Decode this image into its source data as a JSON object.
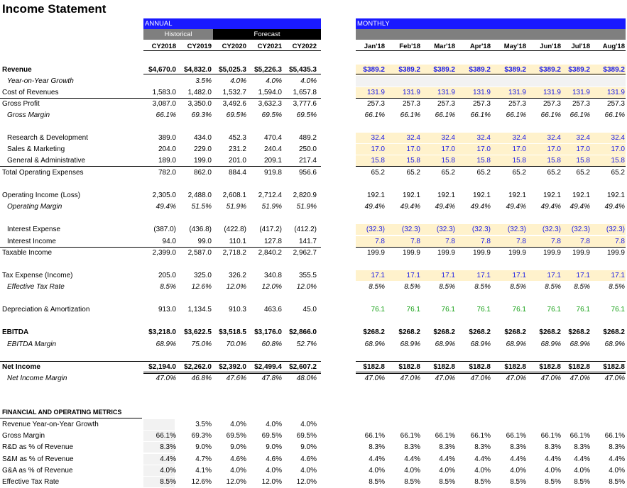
{
  "title": "Income Statement",
  "sections": {
    "annual": "ANNUAL",
    "monthly": "MONTHLY",
    "historical": "Historical",
    "forecast": "Forecast"
  },
  "annual_cols": [
    "CY2018",
    "CY2019",
    "CY2020",
    "CY2021",
    "CY2022"
  ],
  "monthly_cols": [
    "Jan'18",
    "Feb'18",
    "Mar'18",
    "Apr'18",
    "May'18",
    "Jun'18",
    "Jul'18",
    "Aug'18"
  ],
  "colors": {
    "header_blue": "#1a1aff",
    "grey_header": "#7f7f7f",
    "black_header": "#000000",
    "input_fill": "#fff2cc",
    "light_fill": "#f2f2f2",
    "input_text": "#1a1ae6",
    "link_text": "#14a014"
  },
  "rows": [
    {
      "label": "Revenue",
      "style": "b",
      "annual": [
        "$4,670.0",
        "$4,832.0",
        "$5,025.3",
        "$5,226.3",
        "$5,435.3"
      ],
      "monthly": [
        "$389.2",
        "$389.2",
        "$389.2",
        "$389.2",
        "$389.2",
        "$389.2",
        "$389.2",
        "$389.2"
      ],
      "mcolor": "blue",
      "mfill": "input",
      "afill": "",
      "line": ""
    },
    {
      "label": "Year-on-Year Growth",
      "style": "it",
      "indent": 2,
      "annual": [
        "",
        "3.5%",
        "4.0%",
        "4.0%",
        "4.0%"
      ],
      "monthly": [
        "",
        "",
        "",
        "",
        "",
        "",
        "",
        ""
      ],
      "mcolor": "",
      "mfill": "light",
      "afill": "",
      "line": ""
    },
    {
      "label": "Cost of Revenues",
      "style": "",
      "annual": [
        "1,583.0",
        "1,482.0",
        "1,532.7",
        "1,594.0",
        "1,657.8"
      ],
      "monthly": [
        "131.9",
        "131.9",
        "131.9",
        "131.9",
        "131.9",
        "131.9",
        "131.9",
        "131.9"
      ],
      "mcolor": "blue",
      "mfill": "input",
      "afill": "",
      "line": "below"
    },
    {
      "label": "Gross Profit",
      "style": "",
      "annual": [
        "3,087.0",
        "3,350.0",
        "3,492.6",
        "3,632.3",
        "3,777.6"
      ],
      "monthly": [
        "257.3",
        "257.3",
        "257.3",
        "257.3",
        "257.3",
        "257.3",
        "257.3",
        "257.3"
      ],
      "mcolor": "",
      "mfill": "",
      "afill": "",
      "line": ""
    },
    {
      "label": "Gross Margin",
      "style": "it",
      "indent": 2,
      "annual": [
        "66.1%",
        "69.3%",
        "69.5%",
        "69.5%",
        "69.5%"
      ],
      "monthly": [
        "66.1%",
        "66.1%",
        "66.1%",
        "66.1%",
        "66.1%",
        "66.1%",
        "66.1%",
        "66.1%"
      ],
      "mcolor": "",
      "mfill": "",
      "afill": "",
      "line": ""
    },
    {
      "label": "Research & Development",
      "style": "",
      "indent": 2,
      "annual": [
        "389.0",
        "434.0",
        "452.3",
        "470.4",
        "489.2"
      ],
      "monthly": [
        "32.4",
        "32.4",
        "32.4",
        "32.4",
        "32.4",
        "32.4",
        "32.4",
        "32.4"
      ],
      "mcolor": "blue",
      "mfill": "input",
      "afill": "",
      "line": ""
    },
    {
      "label": "Sales & Marketing",
      "style": "",
      "indent": 2,
      "annual": [
        "204.0",
        "229.0",
        "231.2",
        "240.4",
        "250.0"
      ],
      "monthly": [
        "17.0",
        "17.0",
        "17.0",
        "17.0",
        "17.0",
        "17.0",
        "17.0",
        "17.0"
      ],
      "mcolor": "blue",
      "mfill": "input",
      "afill": "",
      "line": ""
    },
    {
      "label": "General & Administrative",
      "style": "",
      "indent": 2,
      "annual": [
        "189.0",
        "199.0",
        "201.0",
        "209.1",
        "217.4"
      ],
      "monthly": [
        "15.8",
        "15.8",
        "15.8",
        "15.8",
        "15.8",
        "15.8",
        "15.8",
        "15.8"
      ],
      "mcolor": "blue",
      "mfill": "input",
      "afill": "",
      "line": "below"
    },
    {
      "label": "Total Operating Expenses",
      "style": "",
      "annual": [
        "782.0",
        "862.0",
        "884.4",
        "919.8",
        "956.6"
      ],
      "monthly": [
        "65.2",
        "65.2",
        "65.2",
        "65.2",
        "65.2",
        "65.2",
        "65.2",
        "65.2"
      ],
      "mcolor": "",
      "mfill": "",
      "afill": "",
      "line": ""
    },
    {
      "label": "Operating Income (Loss)",
      "style": "",
      "annual": [
        "2,305.0",
        "2,488.0",
        "2,608.1",
        "2,712.4",
        "2,820.9"
      ],
      "monthly": [
        "192.1",
        "192.1",
        "192.1",
        "192.1",
        "192.1",
        "192.1",
        "192.1",
        "192.1"
      ],
      "mcolor": "",
      "mfill": "",
      "afill": "",
      "line": ""
    },
    {
      "label": "Operating Margin",
      "style": "it",
      "indent": 2,
      "annual": [
        "49.4%",
        "51.5%",
        "51.9%",
        "51.9%",
        "51.9%"
      ],
      "monthly": [
        "49.4%",
        "49.4%",
        "49.4%",
        "49.4%",
        "49.4%",
        "49.4%",
        "49.4%",
        "49.4%"
      ],
      "mcolor": "",
      "mfill": "",
      "afill": "",
      "line": ""
    },
    {
      "label": "Interest Expense",
      "style": "",
      "indent": 2,
      "annual": [
        "(387.0)",
        "(436.8)",
        "(422.8)",
        "(417.2)",
        "(412.2)"
      ],
      "monthly": [
        "(32.3)",
        "(32.3)",
        "(32.3)",
        "(32.3)",
        "(32.3)",
        "(32.3)",
        "(32.3)",
        "(32.3)"
      ],
      "mcolor": "blue",
      "mfill": "input",
      "afill": "",
      "line": ""
    },
    {
      "label": "Interest Income",
      "style": "",
      "indent": 2,
      "annual": [
        "94.0",
        "99.0",
        "110.1",
        "127.8",
        "141.7"
      ],
      "monthly": [
        "7.8",
        "7.8",
        "7.8",
        "7.8",
        "7.8",
        "7.8",
        "7.8",
        "7.8"
      ],
      "mcolor": "blue",
      "mfill": "input",
      "afill": "",
      "line": "below"
    },
    {
      "label": "Taxable Income",
      "style": "",
      "annual": [
        "2,399.0",
        "2,587.0",
        "2,718.2",
        "2,840.2",
        "2,962.7"
      ],
      "monthly": [
        "199.9",
        "199.9",
        "199.9",
        "199.9",
        "199.9",
        "199.9",
        "199.9",
        "199.9"
      ],
      "mcolor": "",
      "mfill": "",
      "afill": "",
      "line": ""
    },
    {
      "label": "Tax Expense (Income)",
      "style": "",
      "annual": [
        "205.0",
        "325.0",
        "326.2",
        "340.8",
        "355.5"
      ],
      "monthly": [
        "17.1",
        "17.1",
        "17.1",
        "17.1",
        "17.1",
        "17.1",
        "17.1",
        "17.1"
      ],
      "mcolor": "blue",
      "mfill": "input",
      "afill": "",
      "line": ""
    },
    {
      "label": "Effective Tax Rate",
      "style": "it",
      "indent": 2,
      "annual": [
        "8.5%",
        "12.6%",
        "12.0%",
        "12.0%",
        "12.0%"
      ],
      "monthly": [
        "8.5%",
        "8.5%",
        "8.5%",
        "8.5%",
        "8.5%",
        "8.5%",
        "8.5%",
        "8.5%"
      ],
      "mcolor": "",
      "mfill": "",
      "afill": "",
      "line": ""
    },
    {
      "label": "Depreciation & Amortization",
      "style": "",
      "annual": [
        "913.0",
        "1,134.5",
        "910.3",
        "463.6",
        "45.0"
      ],
      "monthly": [
        "76.1",
        "76.1",
        "76.1",
        "76.1",
        "76.1",
        "76.1",
        "76.1",
        "76.1"
      ],
      "mcolor": "green",
      "mfill": "",
      "afill": "",
      "line": ""
    },
    {
      "label": "EBITDA",
      "style": "b",
      "annual": [
        "$3,218.0",
        "$3,622.5",
        "$3,518.5",
        "$3,176.0",
        "$2,866.0"
      ],
      "monthly": [
        "$268.2",
        "$268.2",
        "$268.2",
        "$268.2",
        "$268.2",
        "$268.2",
        "$268.2",
        "$268.2"
      ],
      "mcolor": "",
      "mfill": "",
      "afill": "",
      "line": ""
    },
    {
      "label": "EBITDA Margin",
      "style": "it",
      "indent": 2,
      "annual": [
        "68.9%",
        "75.0%",
        "70.0%",
        "60.8%",
        "52.7%"
      ],
      "monthly": [
        "68.9%",
        "68.9%",
        "68.9%",
        "68.9%",
        "68.9%",
        "68.9%",
        "68.9%",
        "68.9%"
      ],
      "mcolor": "",
      "mfill": "",
      "afill": "",
      "line": ""
    },
    {
      "label": "Net Income",
      "style": "b",
      "annual": [
        "$2,194.0",
        "$2,262.0",
        "$2,392.0",
        "$2,499.4",
        "$2,607.2"
      ],
      "monthly": [
        "$182.8",
        "$182.8",
        "$182.8",
        "$182.8",
        "$182.8",
        "$182.8",
        "$182.8",
        "$182.8"
      ],
      "mcolor": "",
      "mfill": "",
      "afill": "",
      "line": "double"
    },
    {
      "label": "Net Income Margin",
      "style": "it",
      "indent": 2,
      "annual": [
        "47.0%",
        "46.8%",
        "47.6%",
        "47.8%",
        "48.0%"
      ],
      "monthly": [
        "47.0%",
        "47.0%",
        "47.0%",
        "47.0%",
        "47.0%",
        "47.0%",
        "47.0%",
        "47.0%"
      ],
      "mcolor": "",
      "mfill": "",
      "afill": "",
      "line": ""
    },
    {
      "label": "FINANCIAL AND OPERATING METRICS",
      "style": "b",
      "annual": [
        "",
        "",
        "",
        "",
        ""
      ],
      "monthly": [
        "",
        "",
        "",
        "",
        "",
        "",
        "",
        ""
      ],
      "mcolor": "",
      "mfill": "",
      "afill": "",
      "line": "below-label"
    },
    {
      "label": "Revenue Year-on-Year Growth",
      "style": "",
      "annual": [
        "",
        "3.5%",
        "4.0%",
        "4.0%",
        "4.0%"
      ],
      "monthly": [
        "",
        "",
        "",
        "",
        "",
        "",
        "",
        ""
      ],
      "mcolor": "",
      "mfill": "",
      "afill": "light",
      "line": ""
    },
    {
      "label": "Gross Margin",
      "style": "",
      "annual": [
        "66.1%",
        "69.3%",
        "69.5%",
        "69.5%",
        "69.5%"
      ],
      "monthly": [
        "66.1%",
        "66.1%",
        "66.1%",
        "66.1%",
        "66.1%",
        "66.1%",
        "66.1%",
        "66.1%"
      ],
      "mcolor": "",
      "mfill": "",
      "afill": "light",
      "line": ""
    },
    {
      "label": "R&D as % of Revenue",
      "style": "",
      "annual": [
        "8.3%",
        "9.0%",
        "9.0%",
        "9.0%",
        "9.0%"
      ],
      "monthly": [
        "8.3%",
        "8.3%",
        "8.3%",
        "8.3%",
        "8.3%",
        "8.3%",
        "8.3%",
        "8.3%"
      ],
      "mcolor": "",
      "mfill": "",
      "afill": "light",
      "line": ""
    },
    {
      "label": "S&M as % of Revenue",
      "style": "",
      "annual": [
        "4.4%",
        "4.7%",
        "4.6%",
        "4.6%",
        "4.6%"
      ],
      "monthly": [
        "4.4%",
        "4.4%",
        "4.4%",
        "4.4%",
        "4.4%",
        "4.4%",
        "4.4%",
        "4.4%"
      ],
      "mcolor": "",
      "mfill": "",
      "afill": "light",
      "line": ""
    },
    {
      "label": "G&A as % of Revenue",
      "style": "",
      "annual": [
        "4.0%",
        "4.1%",
        "4.0%",
        "4.0%",
        "4.0%"
      ],
      "monthly": [
        "4.0%",
        "4.0%",
        "4.0%",
        "4.0%",
        "4.0%",
        "4.0%",
        "4.0%",
        "4.0%"
      ],
      "mcolor": "",
      "mfill": "",
      "afill": "light",
      "line": ""
    },
    {
      "label": "Effective Tax Rate",
      "style": "",
      "annual": [
        "8.5%",
        "12.6%",
        "12.0%",
        "12.0%",
        "12.0%"
      ],
      "monthly": [
        "8.5%",
        "8.5%",
        "8.5%",
        "8.5%",
        "8.5%",
        "8.5%",
        "8.5%",
        "8.5%"
      ],
      "mcolor": "",
      "mfill": "",
      "afill": "light",
      "line": ""
    }
  ]
}
